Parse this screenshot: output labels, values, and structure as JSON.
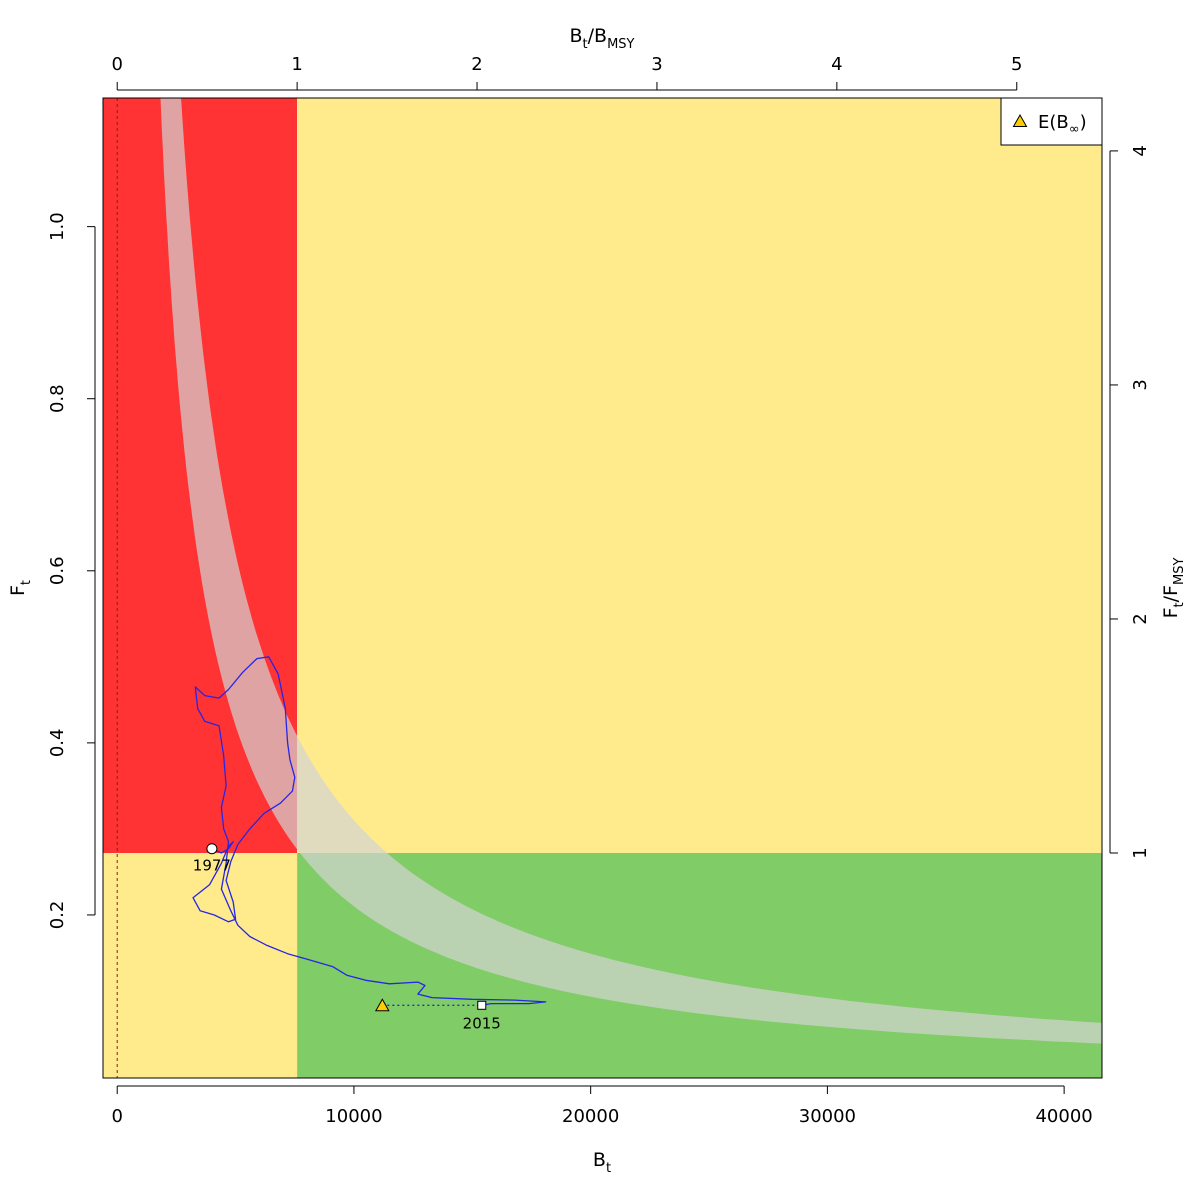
{
  "chart_data": {
    "type": "kobe_phase_plot",
    "axes": {
      "bottom": {
        "label_main": "B",
        "label_sub": "t",
        "range": [
          -600,
          41600
        ],
        "ticks": [
          0,
          10000,
          20000,
          30000,
          40000
        ]
      },
      "left": {
        "label_main": "F",
        "label_sub": "t",
        "range": [
          0.0105,
          1.1495
        ],
        "ticks": [
          0.2,
          0.4,
          0.6,
          0.8,
          1.0
        ],
        "tick_labels": [
          "0.2",
          "0.4",
          "0.6",
          "0.8",
          "1.0"
        ]
      },
      "top": {
        "label_parts": [
          "B",
          "t",
          "/B",
          "MSY"
        ],
        "ticks": [
          0,
          1,
          2,
          3,
          4,
          5
        ]
      },
      "right": {
        "label_parts": [
          "F",
          "t",
          "/F",
          "MSY"
        ],
        "ticks": [
          1,
          2,
          3,
          4
        ]
      }
    },
    "reference_points": {
      "Bmsy": 7600,
      "Fmsy": 0.272
    },
    "zone_colors": {
      "overfished_overfishing": "#ff3333",
      "caution": "#ffeb8c",
      "healthy": "#80cc66",
      "equilibrium_band": "#d3d3d3"
    },
    "equilibrium_band": {
      "upper_F_times_B": 3100,
      "lower_F_times_B": 2100,
      "B_start": 1250,
      "B_end": 41600
    },
    "trajectory": {
      "color": "#2626e6",
      "points": [
        [
          4000,
          0.277
        ],
        [
          4400,
          0.272
        ],
        [
          4700,
          0.277
        ],
        [
          4900,
          0.285
        ],
        [
          4700,
          0.28
        ],
        [
          4400,
          0.26
        ],
        [
          3900,
          0.235
        ],
        [
          3200,
          0.22
        ],
        [
          3500,
          0.205
        ],
        [
          4100,
          0.2
        ],
        [
          4700,
          0.192
        ],
        [
          5000,
          0.195
        ],
        [
          4900,
          0.215
        ],
        [
          4600,
          0.24
        ],
        [
          4800,
          0.262
        ],
        [
          5100,
          0.282
        ],
        [
          5600,
          0.3
        ],
        [
          6200,
          0.318
        ],
        [
          6900,
          0.33
        ],
        [
          7400,
          0.344
        ],
        [
          7500,
          0.36
        ],
        [
          7300,
          0.38
        ],
        [
          7200,
          0.4
        ],
        [
          7100,
          0.44
        ],
        [
          6800,
          0.48
        ],
        [
          6400,
          0.5
        ],
        [
          5900,
          0.498
        ],
        [
          5300,
          0.482
        ],
        [
          4700,
          0.462
        ],
        [
          4300,
          0.452
        ],
        [
          3700,
          0.455
        ],
        [
          3300,
          0.465
        ],
        [
          3400,
          0.44
        ],
        [
          3700,
          0.425
        ],
        [
          4300,
          0.42
        ],
        [
          4500,
          0.385
        ],
        [
          4600,
          0.35
        ],
        [
          4400,
          0.325
        ],
        [
          4500,
          0.3
        ],
        [
          4700,
          0.285
        ],
        [
          4600,
          0.26
        ],
        [
          4400,
          0.23
        ],
        [
          4800,
          0.205
        ],
        [
          5100,
          0.188
        ],
        [
          5600,
          0.175
        ],
        [
          6300,
          0.165
        ],
        [
          7200,
          0.155
        ],
        [
          8100,
          0.148
        ],
        [
          9100,
          0.14
        ],
        [
          9700,
          0.13
        ],
        [
          10500,
          0.124
        ],
        [
          11500,
          0.12
        ],
        [
          12700,
          0.122
        ],
        [
          13000,
          0.118
        ],
        [
          12700,
          0.108
        ],
        [
          13300,
          0.104
        ],
        [
          15000,
          0.102
        ],
        [
          16800,
          0.101
        ],
        [
          18100,
          0.099
        ],
        [
          17400,
          0.097
        ],
        [
          15800,
          0.097
        ],
        [
          15400,
          0.095
        ]
      ]
    },
    "start_point": {
      "B": 4000,
      "F": 0.277,
      "label": "1977"
    },
    "end_point": {
      "B": 15400,
      "F": 0.095,
      "label": "2015"
    },
    "expected_equilibrium": {
      "B": 11200,
      "F": 0.095
    },
    "legend": {
      "position": "top-right",
      "entries": [
        {
          "symbol": "triangle",
          "text_main": "E(B",
          "text_sub": "∞",
          "text_end": ")"
        }
      ]
    },
    "marker_fill": "#ffcc00",
    "grid": false
  }
}
